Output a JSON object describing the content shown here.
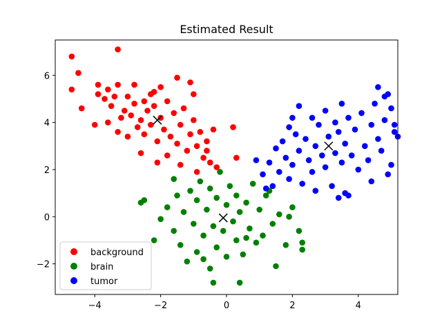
{
  "chart_data": {
    "type": "scatter",
    "title": "Estimated Result",
    "xlabel": "",
    "ylabel": "",
    "xlim": [
      -5.2,
      5.2
    ],
    "ylim": [
      -3.3,
      7.5
    ],
    "xticks": [
      -4,
      -2,
      0,
      2,
      4
    ],
    "yticks": [
      -2,
      0,
      2,
      4,
      6
    ],
    "legend_position": "lower-left",
    "grid": false,
    "series": [
      {
        "name": "background",
        "color": "#ff0000",
        "points": [
          [
            -4.7,
            6.8
          ],
          [
            -3.3,
            7.1
          ],
          [
            -4.5,
            6.1
          ],
          [
            -4.7,
            5.4
          ],
          [
            -4.4,
            4.6
          ],
          [
            -4.0,
            3.9
          ],
          [
            -3.9,
            5.6
          ],
          [
            -3.9,
            5.2
          ],
          [
            -3.7,
            5.0
          ],
          [
            -3.6,
            5.4
          ],
          [
            -3.5,
            4.7
          ],
          [
            -3.4,
            5.1
          ],
          [
            -3.3,
            5.6
          ],
          [
            -3.2,
            4.2
          ],
          [
            -3.1,
            4.5
          ],
          [
            -3.0,
            5.1
          ],
          [
            -2.9,
            4.3
          ],
          [
            -2.8,
            4.8
          ],
          [
            -2.8,
            5.6
          ],
          [
            -2.7,
            3.8
          ],
          [
            -2.6,
            4.1
          ],
          [
            -2.5,
            4.9
          ],
          [
            -2.5,
            3.5
          ],
          [
            -2.4,
            4.5
          ],
          [
            -2.3,
            5.2
          ],
          [
            -2.3,
            3.9
          ],
          [
            -2.2,
            4.7
          ],
          [
            -2.1,
            3.2
          ],
          [
            -2.0,
            4.2
          ],
          [
            -2.0,
            5.5
          ],
          [
            -1.9,
            3.7
          ],
          [
            -1.8,
            4.9
          ],
          [
            -1.7,
            3.4
          ],
          [
            -1.6,
            4.4
          ],
          [
            -1.5,
            5.9
          ],
          [
            -1.5,
            3.1
          ],
          [
            -1.4,
            3.9
          ],
          [
            -1.3,
            4.6
          ],
          [
            -1.2,
            2.8
          ],
          [
            -1.1,
            3.5
          ],
          [
            -1.0,
            4.1
          ],
          [
            -1.0,
            5.2
          ],
          [
            -0.9,
            3.0
          ],
          [
            -0.8,
            3.6
          ],
          [
            -0.7,
            2.5
          ],
          [
            -0.6,
            3.2
          ],
          [
            -0.5,
            2.3
          ],
          [
            -0.4,
            3.7
          ],
          [
            -0.3,
            2.1
          ],
          [
            0.3,
            2.5
          ],
          [
            0.2,
            3.8
          ],
          [
            -3.3,
            3.6
          ],
          [
            -3.0,
            3.4
          ],
          [
            -2.6,
            2.7
          ],
          [
            -2.1,
            2.3
          ],
          [
            -1.8,
            2.6
          ],
          [
            -1.4,
            2.2
          ],
          [
            -0.9,
            1.9
          ],
          [
            -0.6,
            2.8
          ],
          [
            -1.1,
            5.7
          ],
          [
            -2.2,
            5.3
          ],
          [
            -3.6,
            4.0
          ]
        ]
      },
      {
        "name": "brain",
        "color": "#008000",
        "points": [
          [
            -2.2,
            -1.0
          ],
          [
            -2.0,
            -0.1
          ],
          [
            -1.8,
            0.4
          ],
          [
            -1.6,
            -0.6
          ],
          [
            -1.5,
            0.9
          ],
          [
            -1.4,
            -1.2
          ],
          [
            -1.3,
            0.2
          ],
          [
            -1.2,
            -1.9
          ],
          [
            -1.1,
            1.1
          ],
          [
            -1.0,
            -0.3
          ],
          [
            -0.9,
            0.7
          ],
          [
            -0.9,
            -1.5
          ],
          [
            -0.8,
            1.5
          ],
          [
            -0.7,
            -0.8
          ],
          [
            -0.6,
            0.3
          ],
          [
            -0.5,
            -2.2
          ],
          [
            -0.5,
            1.2
          ],
          [
            -0.4,
            -0.4
          ],
          [
            -0.3,
            0.8
          ],
          [
            -0.3,
            -1.3
          ],
          [
            -0.2,
            1.9
          ],
          [
            -0.1,
            -0.6
          ],
          [
            0.0,
            0.5
          ],
          [
            0.0,
            -1.7
          ],
          [
            0.1,
            1.3
          ],
          [
            0.2,
            -0.2
          ],
          [
            0.3,
            0.9
          ],
          [
            0.3,
            -1.0
          ],
          [
            0.4,
            0.2
          ],
          [
            0.5,
            -1.6
          ],
          [
            0.6,
            0.6
          ],
          [
            0.7,
            -0.5
          ],
          [
            0.8,
            1.4
          ],
          [
            0.9,
            -1.1
          ],
          [
            1.0,
            0.3
          ],
          [
            1.1,
            -0.8
          ],
          [
            1.2,
            0.9
          ],
          [
            1.4,
            -0.3
          ],
          [
            1.5,
            -2.1
          ],
          [
            1.6,
            0.1
          ],
          [
            1.8,
            -1.2
          ],
          [
            2.0,
            0.4
          ],
          [
            2.2,
            -0.6
          ],
          [
            2.3,
            -1.1
          ],
          [
            2.3,
            -1.4
          ],
          [
            -2.6,
            0.6
          ],
          [
            -2.5,
            0.7
          ],
          [
            -0.4,
            -2.8
          ],
          [
            0.4,
            -2.8
          ],
          [
            1.3,
            1.1
          ],
          [
            -1.6,
            1.6
          ],
          [
            -0.7,
            -1.8
          ],
          [
            0.6,
            -0.9
          ],
          [
            1.9,
            0.0
          ]
        ]
      },
      {
        "name": "tumor",
        "color": "#0000ff",
        "points": [
          [
            0.9,
            2.4
          ],
          [
            1.1,
            1.8
          ],
          [
            1.3,
            2.3
          ],
          [
            1.4,
            1.3
          ],
          [
            1.5,
            2.9
          ],
          [
            1.6,
            1.9
          ],
          [
            1.7,
            3.2
          ],
          [
            1.8,
            2.5
          ],
          [
            1.9,
            1.6
          ],
          [
            1.9,
            3.8
          ],
          [
            2.0,
            2.2
          ],
          [
            2.1,
            3.5
          ],
          [
            2.2,
            2.8
          ],
          [
            2.2,
            4.7
          ],
          [
            2.3,
            1.4
          ],
          [
            2.4,
            3.3
          ],
          [
            2.5,
            2.4
          ],
          [
            2.6,
            4.2
          ],
          [
            2.6,
            1.9
          ],
          [
            2.7,
            3.0
          ],
          [
            2.8,
            3.9
          ],
          [
            2.9,
            2.6
          ],
          [
            3.0,
            4.5
          ],
          [
            3.0,
            2.1
          ],
          [
            3.1,
            3.4
          ],
          [
            3.2,
            1.3
          ],
          [
            3.3,
            4.0
          ],
          [
            3.3,
            2.7
          ],
          [
            3.4,
            3.6
          ],
          [
            3.5,
            2.3
          ],
          [
            3.5,
            4.8
          ],
          [
            3.6,
            3.1
          ],
          [
            3.7,
            4.2
          ],
          [
            3.7,
            0.9
          ],
          [
            3.8,
            2.6
          ],
          [
            3.9,
            3.7
          ],
          [
            4.0,
            2.0
          ],
          [
            4.1,
            4.4
          ],
          [
            4.2,
            3.0
          ],
          [
            4.3,
            2.4
          ],
          [
            4.4,
            3.9
          ],
          [
            4.5,
            4.8
          ],
          [
            4.6,
            5.5
          ],
          [
            4.6,
            3.3
          ],
          [
            4.7,
            2.8
          ],
          [
            4.8,
            4.1
          ],
          [
            4.9,
            5.2
          ],
          [
            4.9,
            1.8
          ],
          [
            5.0,
            4.6
          ],
          [
            5.0,
            2.2
          ],
          [
            5.1,
            3.6
          ],
          [
            5.1,
            3.9
          ],
          [
            5.2,
            3.4
          ],
          [
            3.4,
            0.8
          ],
          [
            2.7,
            1.1
          ],
          [
            1.2,
            1.2
          ],
          [
            3.6,
            1.0
          ],
          [
            4.4,
            1.5
          ],
          [
            2.0,
            4.2
          ],
          [
            4.8,
            5.1
          ]
        ]
      }
    ],
    "centroids": [
      [
        -2.1,
        4.1
      ],
      [
        -0.1,
        -0.05
      ],
      [
        3.1,
        3.0
      ]
    ]
  }
}
